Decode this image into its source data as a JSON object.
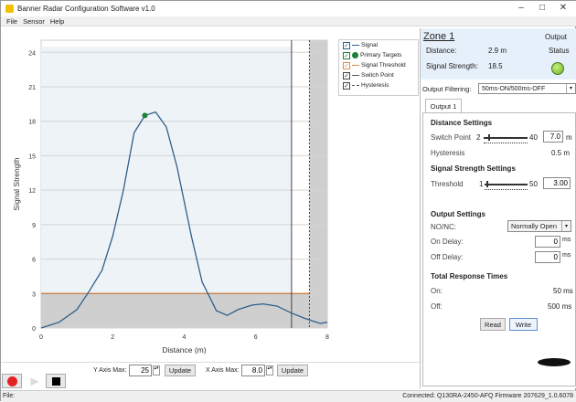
{
  "window": {
    "title": "Banner Radar Configuration Software v1.0"
  },
  "menu": [
    "File",
    "Sensor",
    "Help"
  ],
  "chart_data": {
    "type": "line",
    "xlabel": "Distance (m)",
    "ylabel": "Signal Strength",
    "xlim": [
      0,
      8
    ],
    "ylim": [
      0,
      25
    ],
    "xticks": [
      0,
      2,
      4,
      6,
      8
    ],
    "yticks": [
      0,
      3,
      6,
      9,
      12,
      15,
      18,
      21,
      24
    ],
    "grid": true,
    "series": [
      {
        "name": "Signal",
        "color": "#2f5f8a",
        "x": [
          0,
          0.5,
          1,
          1.3,
          1.7,
          2,
          2.3,
          2.6,
          2.9,
          3.2,
          3.5,
          3.8,
          4.2,
          4.5,
          4.9,
          5.2,
          5.5,
          5.9,
          6.2,
          6.6,
          7,
          7.4,
          7.8,
          8
        ],
        "y": [
          0,
          0.5,
          1.6,
          3,
          5,
          8,
          12,
          17,
          18.5,
          18.8,
          17.5,
          14,
          8,
          4,
          1.5,
          1.1,
          1.6,
          2,
          2.1,
          1.9,
          1.3,
          0.8,
          0.4,
          0.5
        ]
      }
    ],
    "primary_target": {
      "x": 2.9,
      "y": 18.5,
      "color": "#1e7f3a"
    },
    "signal_threshold": 3.0,
    "threshold_color": "#c87a3c",
    "switch_point": 7.0,
    "hysteresis": 0.5,
    "legend": {
      "placement": "top-right",
      "entries": [
        "Signal",
        "Primary Targets",
        "Signal Threshold",
        "Switch Point",
        "Hysteresis"
      ]
    }
  },
  "zone": {
    "title": "Zone 1",
    "distance_label": "Distance:",
    "distance_value": "2.9 m",
    "strength_label": "Signal Strength:",
    "strength_value": "18.5",
    "output_label1": "Output",
    "output_label2": "Status",
    "status_color": "#7dc832"
  },
  "filtering": {
    "label": "Output Filtering:",
    "value": "50ms-ON/500ms-OFF"
  },
  "tab": "Output 1",
  "distance": {
    "title": "Distance Settings",
    "switch_label": "Switch Point",
    "min": "2",
    "max": "40",
    "value": "7.0",
    "unit": "m",
    "hyst_label": "Hysteresis",
    "hyst_value": "0.5 m"
  },
  "strength": {
    "title": "Signal Strength Settings",
    "threshold_label": "Threshold",
    "min": "1",
    "max": "50",
    "value": "3.00"
  },
  "output": {
    "title": "Output Settings",
    "nonc_label": "NO/NC:",
    "nonc_value": "Normally Open",
    "on_label": "On Delay:",
    "on_value": "0",
    "off_label": "Off Delay:",
    "off_value": "0",
    "unit": "ms"
  },
  "response": {
    "title": "Total Response Times",
    "on_label": "On:",
    "on_value": "50 ms",
    "off_label": "Off:",
    "off_value": "500 ms"
  },
  "buttons": {
    "read": "Read",
    "write": "Write",
    "update": "Update"
  },
  "axes": {
    "y_label": "Y Axis Max:",
    "y_value": "25",
    "x_label": "X Axis Max:",
    "x_value": "8.0"
  },
  "logo": "BANNER",
  "status": {
    "left": "File:",
    "right": "Connected: Q130RA-2450-AFQ Firmware 207629_1.0.6078"
  }
}
